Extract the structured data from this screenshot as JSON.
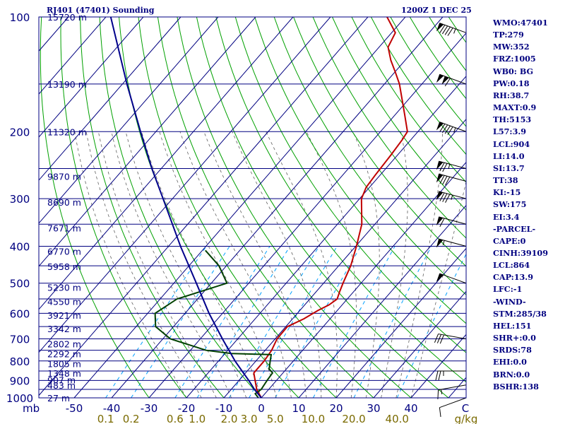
{
  "header": {
    "station_title": "RJ401 (47401) Sounding",
    "time_title": "1200Z  1 DEC 25"
  },
  "indices": [
    "WMO:47401",
    "TP:279",
    "MW:352",
    "FRZ:1005",
    "WB0: BG",
    "PW:0.18",
    "RH:38.7",
    "MAXT:0.9",
    "TH:5153",
    "L57:3.9",
    "LCL:904",
    "LI:14.0",
    "SI:13.7",
    "TT:38",
    "KI:-15",
    "SW:175",
    "EI:3.4",
    "-PARCEL-",
    "CAPE:0",
    "CINH:39109",
    "LCL:864",
    "CAP:13.9",
    "LFC:-1",
    "-WIND-",
    "STM:285/38",
    "HEL:151",
    "SHR+:0.0",
    "SRDS:78",
    "EHI:0.0",
    "BRN:0.0",
    "BSHR:138"
  ],
  "chart_data": {
    "type": "line",
    "title": "RJ401 (47401) Sounding",
    "subtitle": "1200Z  1 DEC 25",
    "xlabel": "",
    "ylabel": "mb",
    "x_ticks": [
      -50,
      -40,
      -30,
      -20,
      -10,
      0,
      10,
      20,
      30,
      40
    ],
    "x_tick_end_label": "C",
    "y_ticks": [
      100,
      200,
      300,
      400,
      500,
      600,
      700,
      800,
      900,
      1000
    ],
    "y_log_scale": true,
    "mixing_ratio_labels": [
      "0.1",
      "0.2",
      "0.6",
      "1.0",
      "2.0",
      "3.0",
      "5.0",
      "10.0",
      "20.0",
      "40.0"
    ],
    "mixing_ratio_unit": "g/kg",
    "height_labels": [
      {
        "p": 1000,
        "h": "27 m"
      },
      {
        "p": 925,
        "h": "483 m"
      },
      {
        "p": 897,
        "h": "907 m"
      },
      {
        "p": 862,
        "h": "1348 m"
      },
      {
        "p": 812,
        "h": "1805 m"
      },
      {
        "p": 766,
        "h": "2292 m"
      },
      {
        "p": 721,
        "h": "2802 m"
      },
      {
        "p": 658,
        "h": "3342 m"
      },
      {
        "p": 607,
        "h": "3921 m"
      },
      {
        "p": 558,
        "h": "4550 m"
      },
      {
        "p": 512,
        "h": "5230 m"
      },
      {
        "p": 452,
        "h": "5958 m"
      },
      {
        "p": 412,
        "h": "6770 m"
      },
      {
        "p": 358,
        "h": "7671 m"
      },
      {
        "p": 306,
        "h": "8690 m"
      },
      {
        "p": 262,
        "h": "9870 m"
      },
      {
        "p": 200,
        "h": "11320 m"
      },
      {
        "p": 150,
        "h": "13190 m"
      },
      {
        "p": 100,
        "h": "15720 m"
      }
    ],
    "series": [
      {
        "color": "#c00000",
        "points": [
          {
            "p": 1000,
            "t": 0.0
          },
          {
            "p": 950,
            "t": -3.2
          },
          {
            "p": 900,
            "t": -5.7
          },
          {
            "p": 860,
            "t": -7.8
          },
          {
            "p": 800,
            "t": -7.8
          },
          {
            "p": 750,
            "t": -8.3
          },
          {
            "p": 700,
            "t": -9.5
          },
          {
            "p": 650,
            "t": -9.6
          },
          {
            "p": 620,
            "t": -7.0
          },
          {
            "p": 590,
            "t": -5.2
          },
          {
            "p": 570,
            "t": -3.5
          },
          {
            "p": 550,
            "t": -2.7
          },
          {
            "p": 525,
            "t": -3.8
          },
          {
            "p": 500,
            "t": -4.8
          },
          {
            "p": 450,
            "t": -6.8
          },
          {
            "p": 400,
            "t": -9.8
          },
          {
            "p": 350,
            "t": -13.5
          },
          {
            "p": 300,
            "t": -19.5
          },
          {
            "p": 280,
            "t": -20.9
          },
          {
            "p": 260,
            "t": -21.3
          },
          {
            "p": 230,
            "t": -21.8
          },
          {
            "p": 210,
            "t": -22.3
          },
          {
            "p": 200,
            "t": -22.8
          },
          {
            "p": 180,
            "t": -27.6
          },
          {
            "p": 150,
            "t": -36.0
          },
          {
            "p": 140,
            "t": -39.7
          },
          {
            "p": 130,
            "t": -43.8
          },
          {
            "p": 120,
            "t": -47.6
          },
          {
            "p": 110,
            "t": -49.0
          },
          {
            "p": 100,
            "t": -54.9
          }
        ]
      },
      {
        "color": "#004000",
        "points": [
          {
            "p": 1000,
            "t": -0.8
          },
          {
            "p": 975,
            "t": -2.6
          },
          {
            "p": 950,
            "t": -2.0
          },
          {
            "p": 900,
            "t": -2.5
          },
          {
            "p": 860,
            "t": -2.8
          },
          {
            "p": 840,
            "t": -4.6
          },
          {
            "p": 800,
            "t": -6.2
          },
          {
            "p": 770,
            "t": -7.4
          },
          {
            "p": 765,
            "t": -18.3
          },
          {
            "p": 750,
            "t": -25.8
          },
          {
            "p": 700,
            "t": -38.0
          },
          {
            "p": 650,
            "t": -44.8
          },
          {
            "p": 600,
            "t": -48.0
          },
          {
            "p": 550,
            "t": -45.5
          },
          {
            "p": 500,
            "t": -35.8
          },
          {
            "p": 450,
            "t": -42.0
          },
          {
            "p": 410,
            "t": -49.2
          }
        ]
      },
      {
        "color": "#00008b",
        "points": [
          {
            "p": 1000,
            "t": 0.0
          },
          {
            "p": 950,
            "t": -3.8
          },
          {
            "p": 900,
            "t": -7.4
          },
          {
            "p": 850,
            "t": -11.4
          },
          {
            "p": 800,
            "t": -15.6
          },
          {
            "p": 700,
            "t": -24.1
          },
          {
            "p": 600,
            "t": -33.6
          },
          {
            "p": 500,
            "t": -44.0
          },
          {
            "p": 400,
            "t": -56.8
          },
          {
            "p": 300,
            "t": -72.5
          },
          {
            "p": 250,
            "t": -82.5
          },
          {
            "p": 200,
            "t": -94.1
          },
          {
            "p": 150,
            "t": -108.8
          },
          {
            "p": 100,
            "t": -128.7
          }
        ]
      }
    ],
    "wind_barbs": [
      {
        "p": 110,
        "dir": 290,
        "kt": 95
      },
      {
        "p": 150,
        "dir": 290,
        "kt": 110
      },
      {
        "p": 200,
        "dir": 290,
        "kt": 95
      },
      {
        "p": 250,
        "dir": 285,
        "kt": 75
      },
      {
        "p": 270,
        "dir": 285,
        "kt": 80
      },
      {
        "p": 300,
        "dir": 285,
        "kt": 85
      },
      {
        "p": 350,
        "dir": 285,
        "kt": 60
      },
      {
        "p": 400,
        "dir": 285,
        "kt": 55
      },
      {
        "p": 500,
        "dir": 290,
        "kt": 50
      },
      {
        "p": 700,
        "dir": 280,
        "kt": 30
      },
      {
        "p": 850,
        "dir": 270,
        "kt": 25
      },
      {
        "p": 925,
        "dir": 260,
        "kt": 15
      },
      {
        "p": 1000,
        "dir": 250,
        "kt": 10
      }
    ],
    "colors": {
      "isobar": "#000080",
      "isotherm": "#000080",
      "dry_adiabat": "#00a000",
      "moist_adiabat": "#606060",
      "mixing_ratio": "#00a0ff",
      "axis_text": "#000080",
      "mixing_text": "#7a6a00",
      "barb": "#000000"
    }
  }
}
